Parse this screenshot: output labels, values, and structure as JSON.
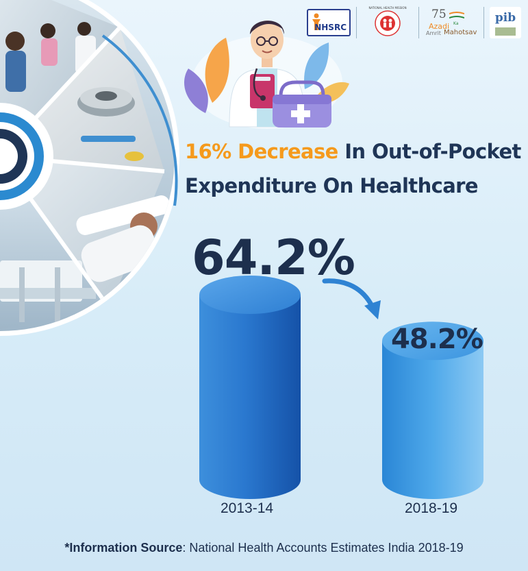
{
  "logos": {
    "nhsrc": "NHSRC",
    "nhm": "NATIONAL HEALTH MISSION",
    "azadi_number": "75",
    "azadi_word": "Azadi",
    "azadi_ka": "Ka",
    "azadi_amrit": "Amrit",
    "azadi_mahotsav": "Mahotsav",
    "pib": "pib"
  },
  "headline": {
    "accent": "16% Decrease",
    "rest_line1": " In Out-of-Pocket",
    "line2": "Expenditure On Healthcare"
  },
  "colors": {
    "accent": "#f59a1c",
    "title": "#1f3556",
    "bar_dark": "#1b63b8",
    "bar_light": "#4aa7ea"
  },
  "chart_data": {
    "type": "bar",
    "categories": [
      "2013-14",
      "2018-19"
    ],
    "values": [
      64.2,
      48.2
    ],
    "value_labels": [
      "64.2%",
      "48.2%"
    ],
    "unit": "%"
  },
  "source": {
    "label": "*Information Source",
    "text": ": National Health Accounts Estimates India 2018-19"
  },
  "illustrations": [
    "doctor-illustration",
    "medical-kit-icon",
    "hospital-photo-collage"
  ]
}
